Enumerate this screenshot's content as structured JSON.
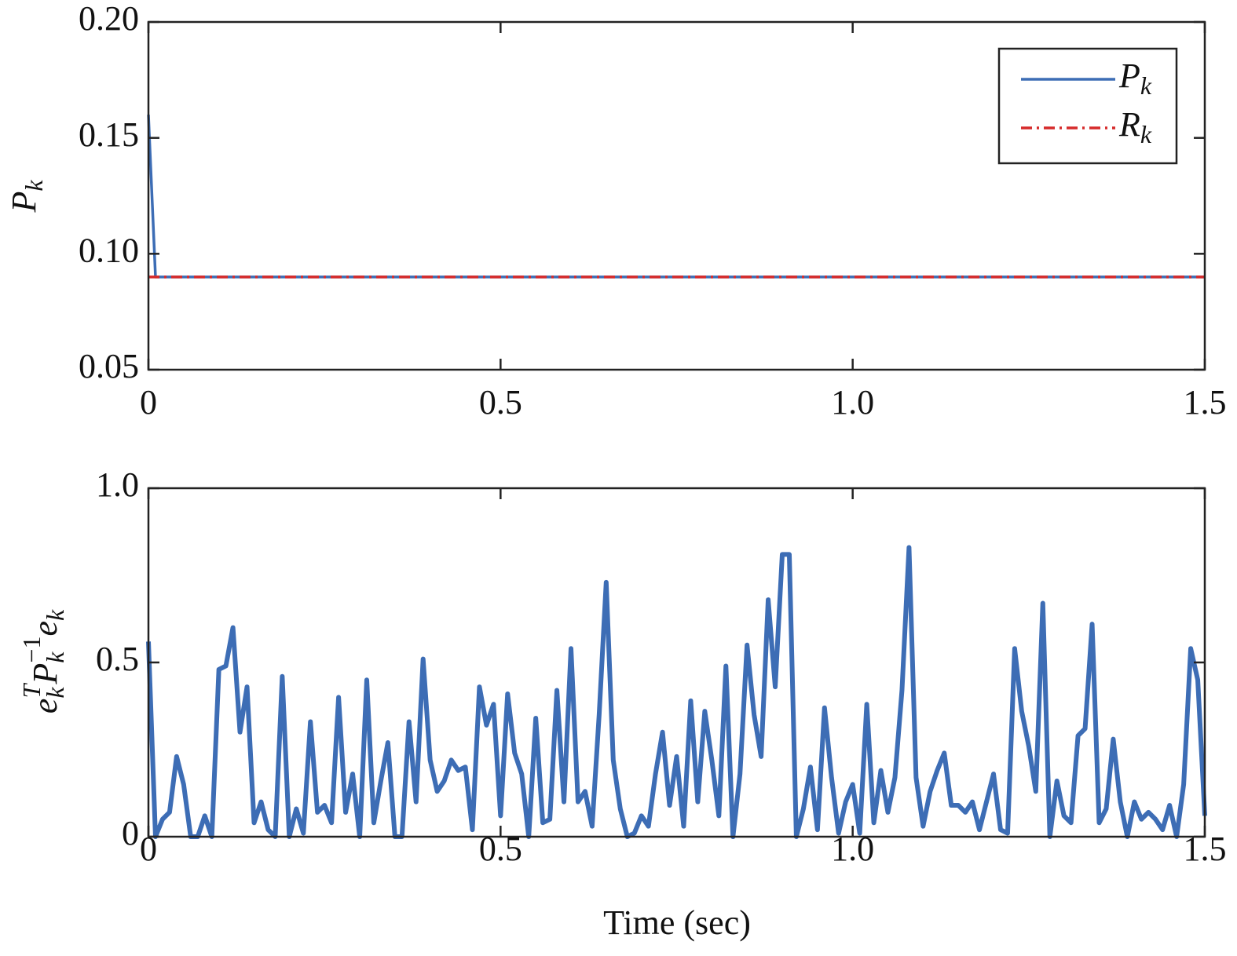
{
  "chart_data": [
    {
      "type": "line",
      "ylabel": [
        {
          "text": "P",
          "pos": "normal"
        },
        {
          "text": "k",
          "pos": "sub"
        }
      ],
      "xlim": [
        0,
        1.5
      ],
      "xticks": [
        0,
        0.5,
        {
          "value": 1.0,
          "label": "1.0"
        },
        1.5
      ],
      "ylim": [
        0.05,
        0.2
      ],
      "yticks": [
        {
          "value": 0.05,
          "label": "0.05"
        },
        {
          "value": 0.1,
          "label": "0.10"
        },
        {
          "value": 0.15,
          "label": "0.15"
        },
        {
          "value": 0.2,
          "label": "0.20"
        }
      ],
      "legend": "upper right",
      "series": [
        {
          "name": [
            {
              "text": "P",
              "pos": "normal"
            },
            {
              "text": "k",
              "pos": "sub"
            }
          ],
          "color": "#3d6db5",
          "style": "solid",
          "x": [
            0,
            0.01,
            1.5
          ],
          "values": [
            0.16,
            0.09,
            0.09
          ]
        },
        {
          "name": [
            {
              "text": "R",
              "pos": "normal"
            },
            {
              "text": "k",
              "pos": "sub"
            }
          ],
          "color": "#d62b2b",
          "style": "dashdot",
          "x": [
            0,
            1.5
          ],
          "values": [
            0.09,
            0.09
          ]
        }
      ]
    },
    {
      "type": "line",
      "ylabel": [
        {
          "text": "e",
          "pos": "normal"
        },
        {
          "text": "k",
          "pos": "sub"
        },
        {
          "text": "T",
          "pos": "sup"
        },
        {
          "text": "P",
          "pos": "normal"
        },
        {
          "text": "k",
          "pos": "sub"
        },
        {
          "text": "−1",
          "pos": "sup"
        },
        {
          "text": "e",
          "pos": "normal"
        },
        {
          "text": "k",
          "pos": "sub"
        }
      ],
      "xlabel": "Time (sec)",
      "xlim": [
        0,
        1.5
      ],
      "xticks": [
        0,
        0.5,
        {
          "value": 1.0,
          "label": "1.0"
        },
        1.5
      ],
      "ylim": [
        0,
        1
      ],
      "yticks": [
        0,
        0.5,
        {
          "value": 1,
          "label": "1.0"
        }
      ],
      "series": [
        {
          "color": "#3d6db5",
          "style": "thick",
          "x": [
            0,
            0.01,
            0.02,
            0.03,
            0.04,
            0.05,
            0.06,
            0.07,
            0.08,
            0.09,
            0.1,
            0.11,
            0.12,
            0.13,
            0.14,
            0.15,
            0.16,
            0.17,
            0.18,
            0.19,
            0.2,
            0.21,
            0.22,
            0.23,
            0.24,
            0.25,
            0.26,
            0.27,
            0.28,
            0.29,
            0.3,
            0.31,
            0.32,
            0.33,
            0.34,
            0.35,
            0.36,
            0.37,
            0.38,
            0.39,
            0.4,
            0.41,
            0.42,
            0.43,
            0.44,
            0.45,
            0.46,
            0.47,
            0.48,
            0.49,
            0.5,
            0.51,
            0.52,
            0.53,
            0.54,
            0.55,
            0.56,
            0.57,
            0.58,
            0.59,
            0.6,
            0.61,
            0.62,
            0.63,
            0.64,
            0.65,
            0.66,
            0.67,
            0.68,
            0.69,
            0.7,
            0.71,
            0.72,
            0.73,
            0.74,
            0.75,
            0.76,
            0.77,
            0.78,
            0.79,
            0.8,
            0.81,
            0.82,
            0.83,
            0.84,
            0.85,
            0.86,
            0.87,
            0.88,
            0.89,
            0.9,
            0.91,
            0.92,
            0.93,
            0.94,
            0.95,
            0.96,
            0.97,
            0.98,
            0.99,
            1.0,
            1.01,
            1.02,
            1.03,
            1.04,
            1.05,
            1.06,
            1.07,
            1.08,
            1.09,
            1.1,
            1.11,
            1.12,
            1.13,
            1.14,
            1.15,
            1.16,
            1.17,
            1.18,
            1.19,
            1.2,
            1.21,
            1.22,
            1.23,
            1.24,
            1.25,
            1.26,
            1.27,
            1.28,
            1.29,
            1.3,
            1.31,
            1.32,
            1.33,
            1.34,
            1.35,
            1.36,
            1.37,
            1.38,
            1.39,
            1.4,
            1.41,
            1.42,
            1.43,
            1.44,
            1.45,
            1.46,
            1.47,
            1.48,
            1.49,
            1.5
          ],
          "values": [
            0.56,
            0,
            0.05,
            0.07,
            0.23,
            0.15,
            0,
            0,
            0.06,
            0,
            0.48,
            0.49,
            0.6,
            0.3,
            0.43,
            0.04,
            0.1,
            0.02,
            0,
            0.46,
            0,
            0.08,
            0.01,
            0.33,
            0.07,
            0.09,
            0.04,
            0.4,
            0.07,
            0.18,
            0,
            0.45,
            0.04,
            0.16,
            0.27,
            0,
            0,
            0.33,
            0.1,
            0.51,
            0.22,
            0.13,
            0.16,
            0.22,
            0.19,
            0.2,
            0.02,
            0.43,
            0.32,
            0.38,
            0.06,
            0.41,
            0.24,
            0.18,
            0,
            0.34,
            0.04,
            0.05,
            0.42,
            0.1,
            0.54,
            0.1,
            0.13,
            0.03,
            0.35,
            0.73,
            0.22,
            0.08,
            0,
            0.01,
            0.06,
            0.03,
            0.18,
            0.3,
            0.09,
            0.23,
            0.03,
            0.39,
            0.1,
            0.36,
            0.22,
            0.06,
            0.49,
            0,
            0.18,
            0.55,
            0.35,
            0.23,
            0.68,
            0.43,
            0.81,
            0.81,
            0,
            0.08,
            0.2,
            0.02,
            0.37,
            0.17,
            0.01,
            0.1,
            0.15,
            0.01,
            0.38,
            0.04,
            0.19,
            0.07,
            0.17,
            0.42,
            0.83,
            0.17,
            0.03,
            0.13,
            0.19,
            0.24,
            0.09,
            0.09,
            0.07,
            0.1,
            0.02,
            0.1,
            0.18,
            0.02,
            0.01,
            0.54,
            0.36,
            0.26,
            0.13,
            0.67,
            0,
            0.16,
            0.06,
            0.04,
            0.29,
            0.31,
            0.61,
            0.04,
            0.08,
            0.28,
            0.1,
            0,
            0.1,
            0.05,
            0.07,
            0.05,
            0.02,
            0.09,
            0,
            0.15,
            0.54,
            0.45,
            0.06
          ]
        }
      ]
    }
  ]
}
